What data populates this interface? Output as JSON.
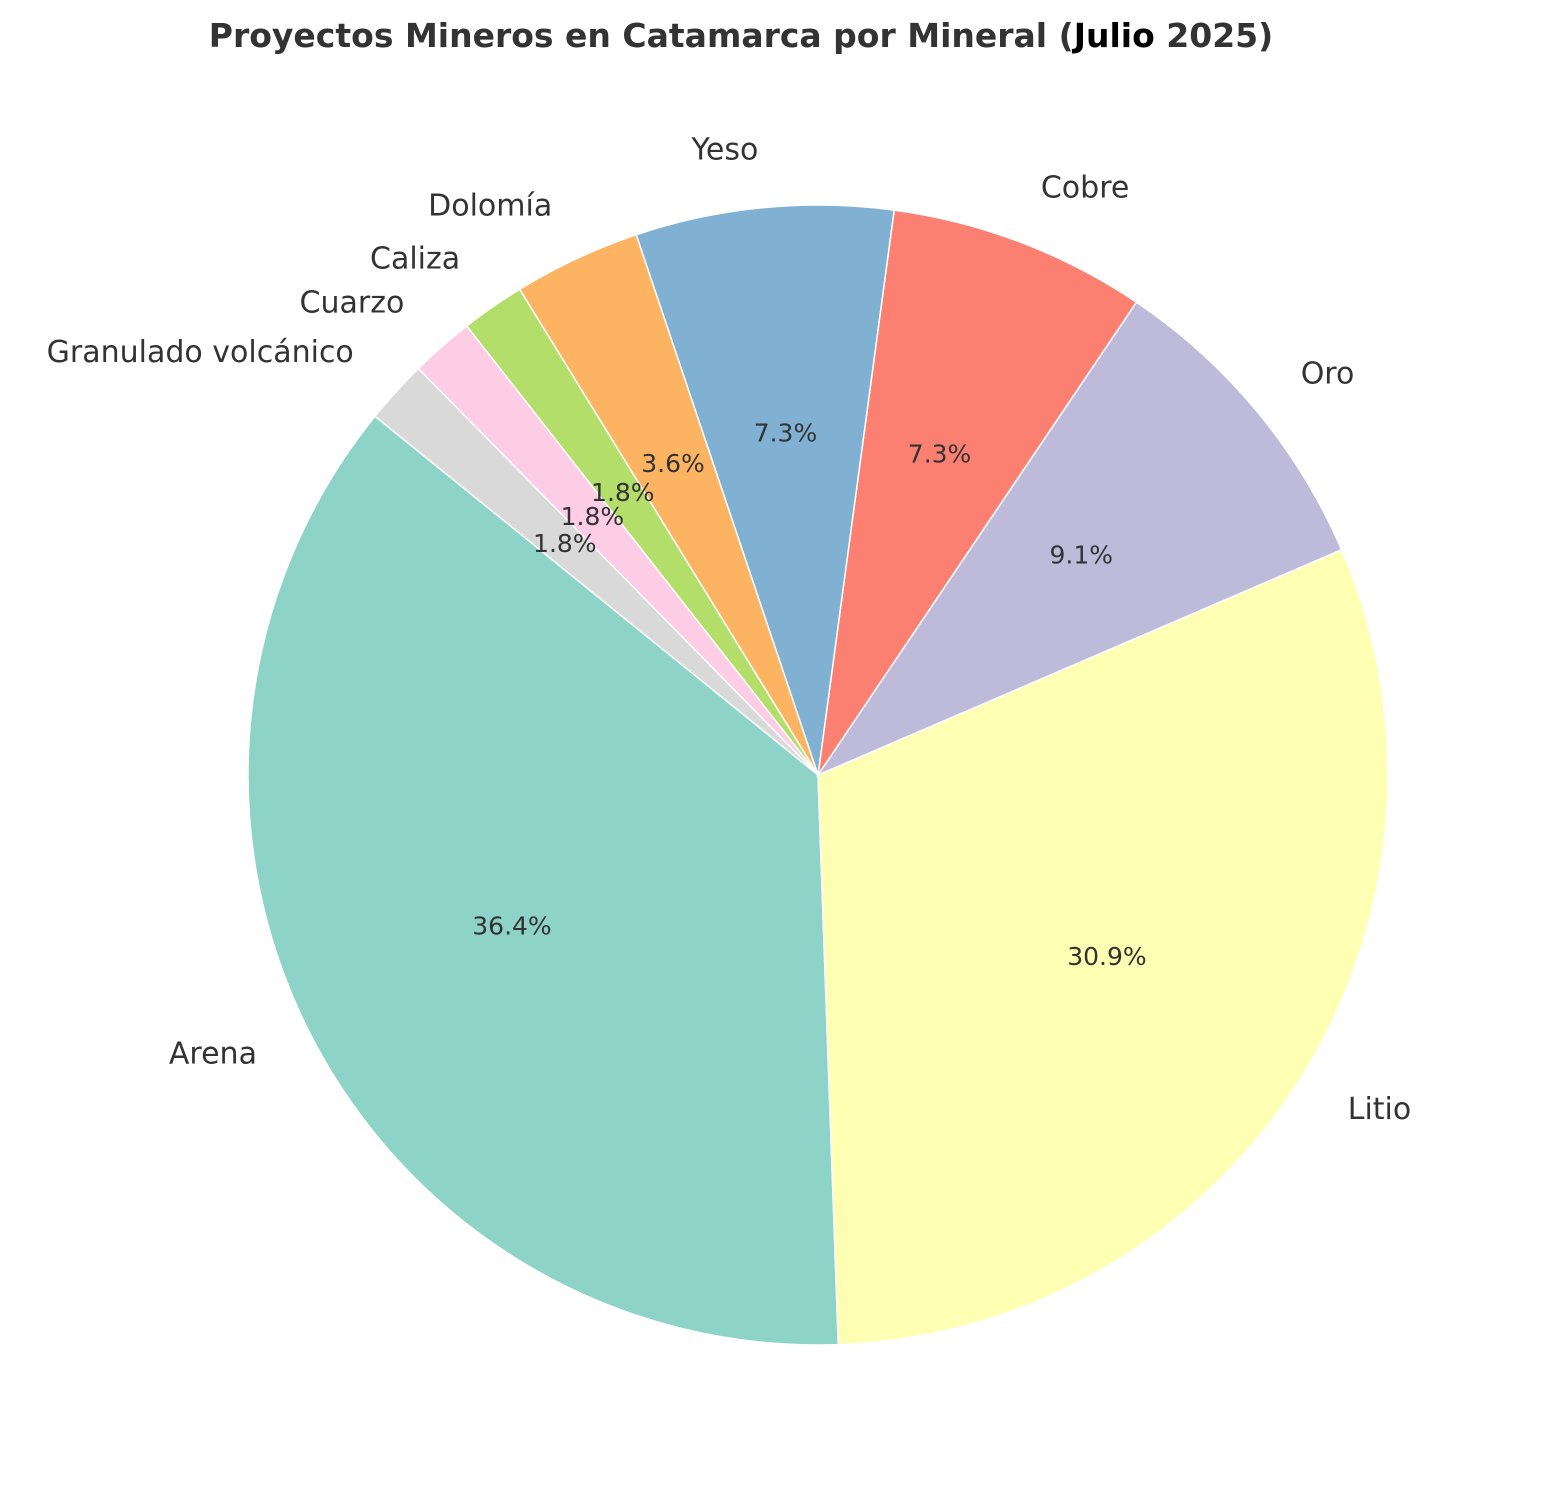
{
  "chart_data": {
    "type": "pie",
    "title_parts": {
      "before": "Proyectos Mineros en Catamarca por Mineral (",
      "highlight": "Julio",
      "after": "2025)"
    },
    "categories": [
      "Arena",
      "Litio",
      "Oro",
      "Cobre",
      "Yeso",
      "Dolomía",
      "Caliza",
      "Cuarzo",
      "Granulado volcánico"
    ],
    "values": [
      36.4,
      30.9,
      9.1,
      7.3,
      7.3,
      3.6,
      1.8,
      1.8,
      1.8
    ],
    "percent_labels": [
      "36.4%",
      "30.9%",
      "9.1%",
      "7.3%",
      "7.3%",
      "3.6%",
      "1.8%",
      "1.8%",
      "1.8%"
    ],
    "colors": [
      "#8dd3c7",
      "#ffffb3",
      "#bebada",
      "#fb8072",
      "#80b1d3",
      "#fdb462",
      "#b3de69",
      "#fccde5",
      "#d9d9d9"
    ],
    "start_angle_deg": 141,
    "direction": "counterclockwise",
    "legend": "none"
  }
}
